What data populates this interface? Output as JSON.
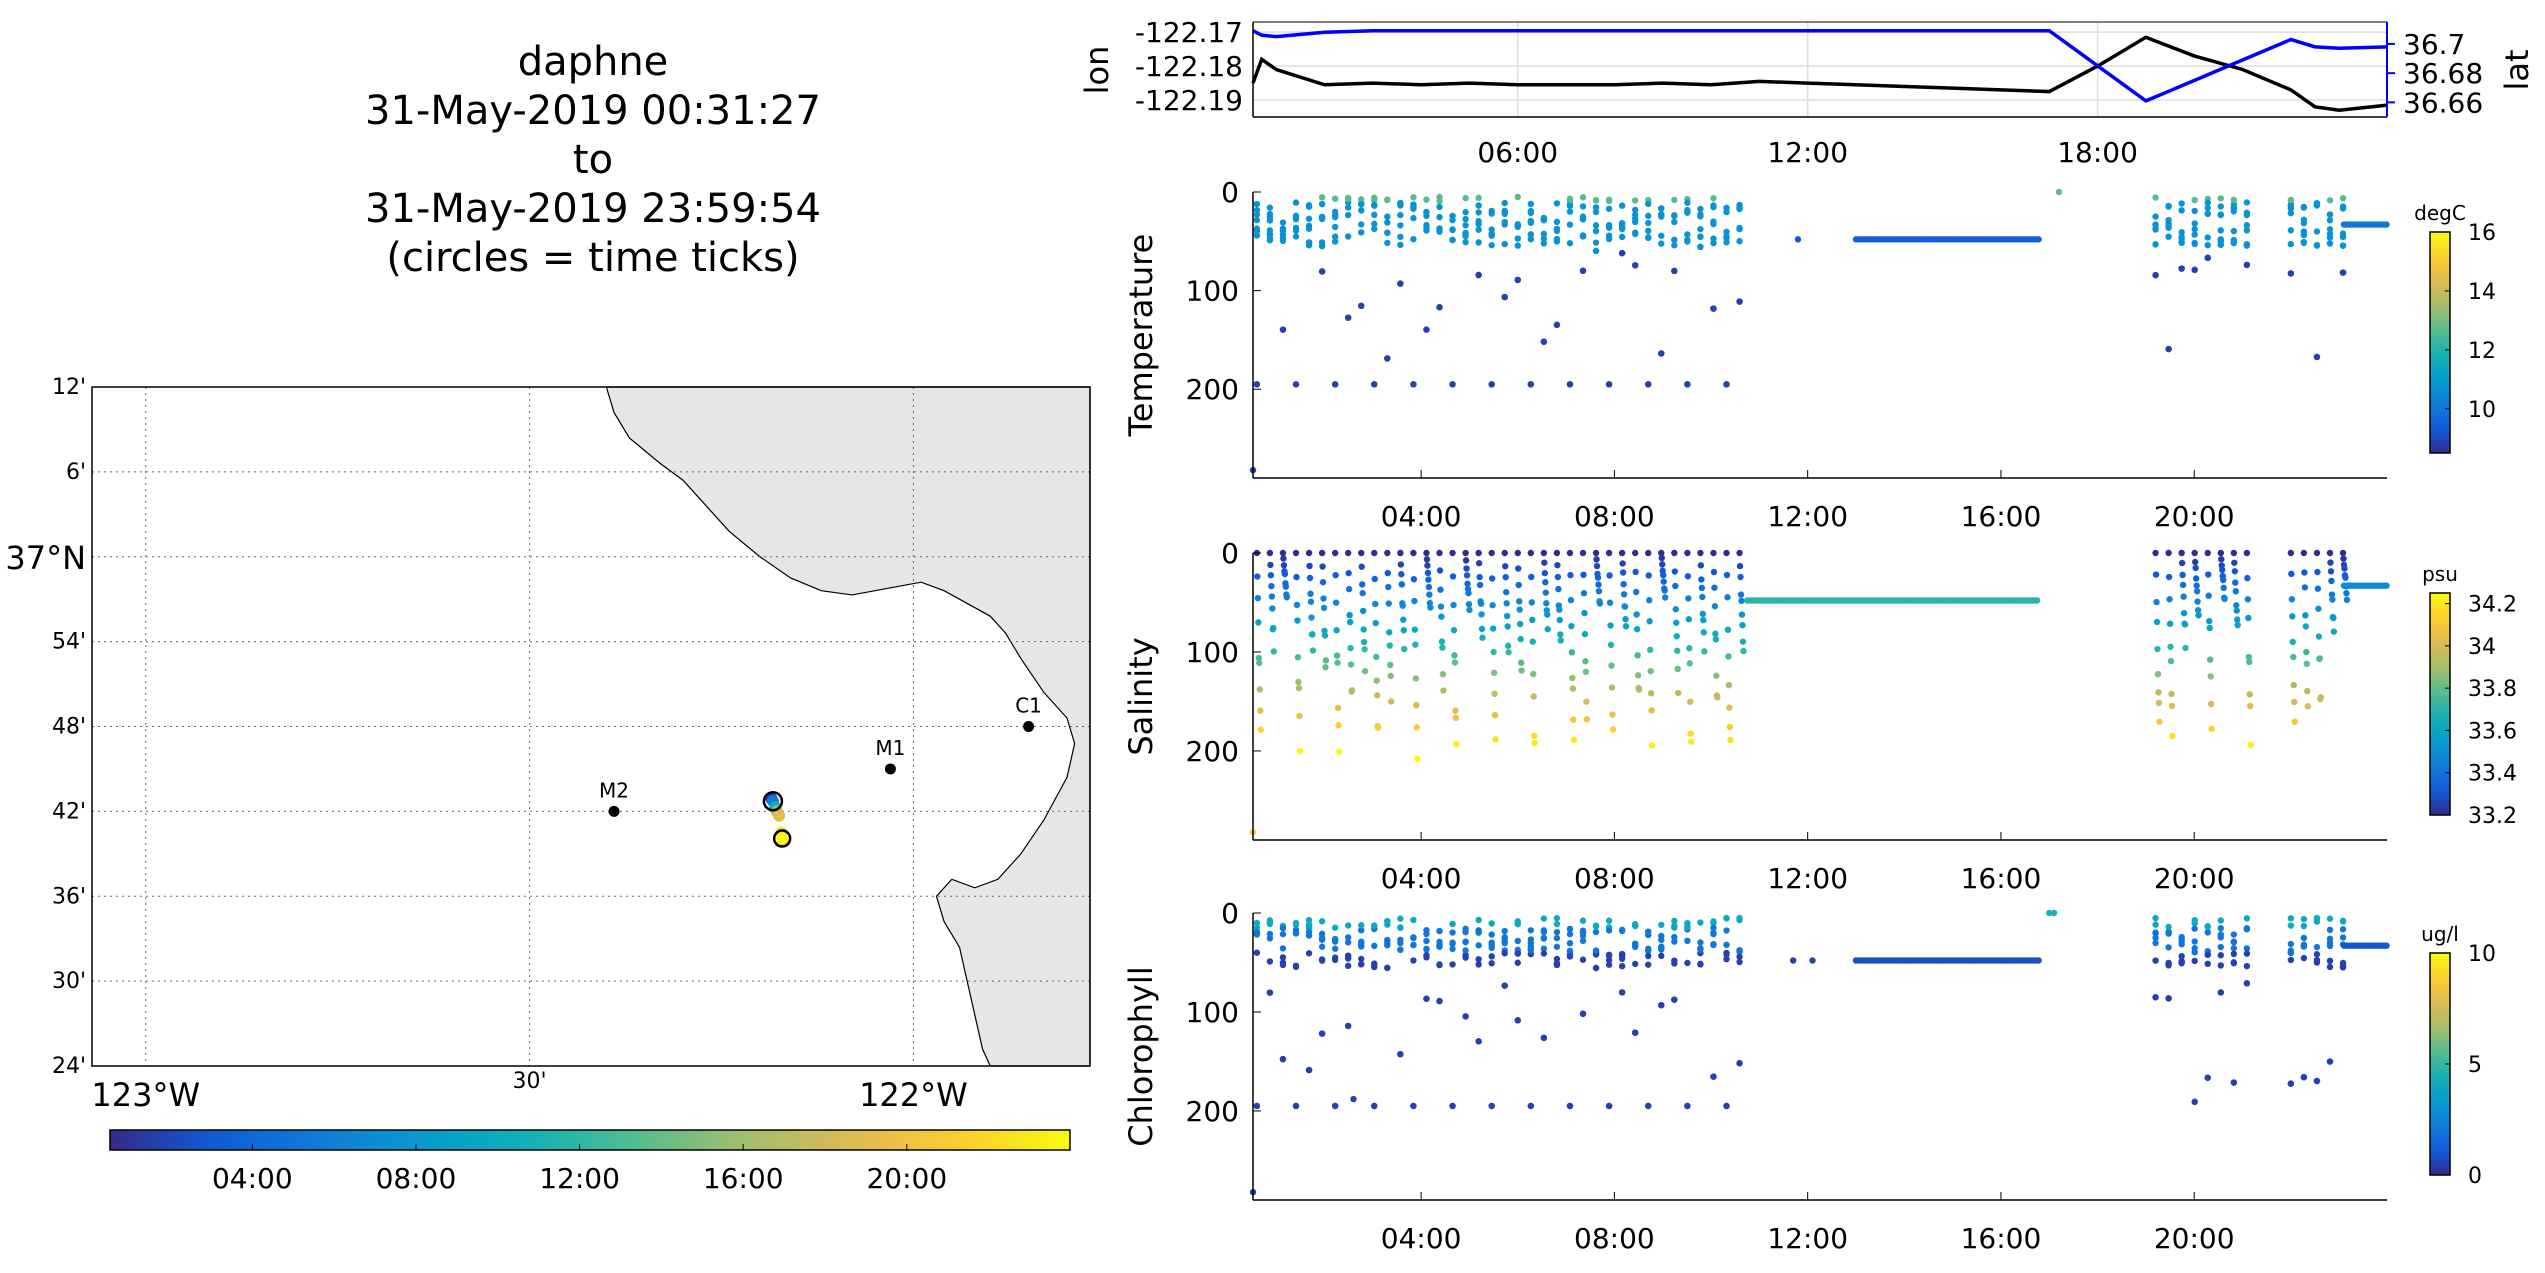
{
  "title": {
    "lines": [
      "daphne",
      "31-May-2019 00:31:27",
      "to",
      "31-May-2019 23:59:54",
      "(circles = time ticks)"
    ]
  },
  "map": {
    "lat_ticks": [
      "12'",
      "6'",
      "37°N",
      "54'",
      "48'",
      "42'",
      "36'",
      "30'",
      "24'"
    ],
    "lon_ticks": [
      "123°W",
      "30'",
      "122°W"
    ],
    "stations": [
      {
        "name": "C1",
        "lon": -121.85,
        "lat": 36.8
      },
      {
        "name": "M1",
        "lon": -122.03,
        "lat": 36.75
      },
      {
        "name": "M2",
        "lon": -122.39,
        "lat": 36.7
      }
    ],
    "track_points": [
      {
        "lon": -122.185,
        "lat": 36.715,
        "t": 1
      },
      {
        "lon": -122.183,
        "lat": 36.712,
        "t": 5
      },
      {
        "lon": -122.18,
        "lat": 36.705,
        "t": 10
      },
      {
        "lon": -122.178,
        "lat": 36.7,
        "t": 16
      },
      {
        "lon": -122.175,
        "lat": 36.695,
        "t": 19
      },
      {
        "lon": -122.17,
        "lat": 36.665,
        "t": 20
      },
      {
        "lon": -122.172,
        "lat": 36.675,
        "t": 22
      },
      {
        "lon": -122.171,
        "lat": 36.668,
        "t": 23.5
      }
    ],
    "colors": {
      "land": "#e6e6e6",
      "station": "#000000"
    }
  },
  "time_colorbar": {
    "ticks": [
      "04:00",
      "08:00",
      "12:00",
      "16:00",
      "20:00"
    ]
  },
  "chart_data": [
    {
      "type": "line",
      "name": "lon-lat",
      "ylabel": "lon",
      "ylabel2": "lat",
      "xticks": [
        "06:00",
        "12:00",
        "18:00"
      ],
      "yticks_left": [
        "-122.17",
        "-122.18",
        "-122.19"
      ],
      "yticks_right": [
        "36.7",
        "36.68",
        "36.66"
      ],
      "ylim_left": [
        -122.195,
        -122.167
      ],
      "ylim_right": [
        36.65,
        36.715
      ],
      "x_hours": [
        0.52,
        0.7,
        1.0,
        2,
        3,
        4,
        5,
        6,
        7,
        8,
        9,
        10,
        11,
        12,
        13,
        14,
        15,
        16,
        17,
        18,
        19,
        20,
        21,
        22,
        22.5,
        23,
        24
      ],
      "lon": [
        -122.185,
        -122.178,
        -122.181,
        -122.1855,
        -122.185,
        -122.1855,
        -122.185,
        -122.1855,
        -122.1855,
        -122.1855,
        -122.185,
        -122.1855,
        -122.1845,
        -122.185,
        -122.1855,
        -122.186,
        -122.1865,
        -122.187,
        -122.1875,
        -122.18,
        -122.1715,
        -122.177,
        -122.181,
        -122.187,
        -122.192,
        -122.193,
        -122.1915
      ],
      "lat": [
        36.709,
        36.706,
        36.705,
        36.708,
        36.709,
        36.709,
        36.709,
        36.709,
        36.709,
        36.709,
        36.709,
        36.709,
        36.709,
        36.709,
        36.709,
        36.709,
        36.709,
        36.709,
        36.709,
        36.685,
        36.661,
        36.675,
        36.689,
        36.703,
        36.698,
        36.697,
        36.698
      ],
      "colors": {
        "lon": "#000000",
        "lat": "#0000ff"
      }
    },
    {
      "type": "scatter",
      "name": "Temperature",
      "ylabel": "Temperature",
      "units": "degC",
      "yticks": [
        "0",
        "100",
        "200"
      ],
      "xticks": [
        "04:00",
        "08:00",
        "12:00",
        "16:00",
        "20:00"
      ],
      "ylim": [
        0,
        290
      ],
      "clim": [
        8.5,
        16
      ],
      "cticks": [
        "16",
        "14",
        "12",
        "10"
      ]
    },
    {
      "type": "scatter",
      "name": "Salinity",
      "ylabel": "Salinity",
      "units": "psu",
      "yticks": [
        "0",
        "100",
        "200"
      ],
      "xticks": [
        "04:00",
        "08:00",
        "12:00",
        "16:00",
        "20:00"
      ],
      "ylim": [
        0,
        290
      ],
      "clim": [
        33.2,
        34.25
      ],
      "cticks": [
        "34.2",
        "34",
        "33.8",
        "33.6",
        "33.4",
        "33.2"
      ]
    },
    {
      "type": "scatter",
      "name": "Chlorophyll",
      "ylabel": "Chlorophyll",
      "units": "ug/l",
      "yticks": [
        "0",
        "100",
        "200"
      ],
      "xticks": [
        "04:00",
        "08:00",
        "12:00",
        "16:00",
        "20:00"
      ],
      "ylim": [
        0,
        290
      ],
      "clim": [
        0,
        10
      ],
      "cticks": [
        "10",
        "5",
        "0"
      ]
    }
  ]
}
